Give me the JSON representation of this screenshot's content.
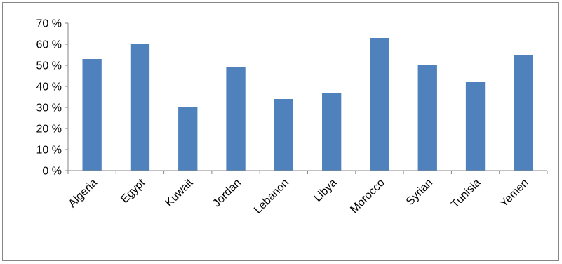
{
  "chart_data": {
    "type": "bar",
    "title": "",
    "xlabel": "",
    "ylabel": "",
    "categories": [
      "Algeria",
      "Egypt",
      "Kuwait",
      "Jordan",
      "Lebanon",
      "Libya",
      "Morocco",
      "Syrian",
      "Tunisia",
      "Yemen"
    ],
    "values": [
      53,
      60,
      30,
      49,
      34,
      37,
      63,
      50,
      42,
      55
    ],
    "ylim": [
      0,
      70
    ],
    "yticks": [
      0,
      10,
      20,
      30,
      40,
      50,
      60,
      70
    ],
    "ytick_labels": [
      "0 %",
      "10 %",
      "20 %",
      "30 %",
      "40 %",
      "50 %",
      "60 %",
      "70 %"
    ],
    "grid": false,
    "legend": "none",
    "bar_color": "#4F81BD",
    "axis_color": "#868686"
  }
}
